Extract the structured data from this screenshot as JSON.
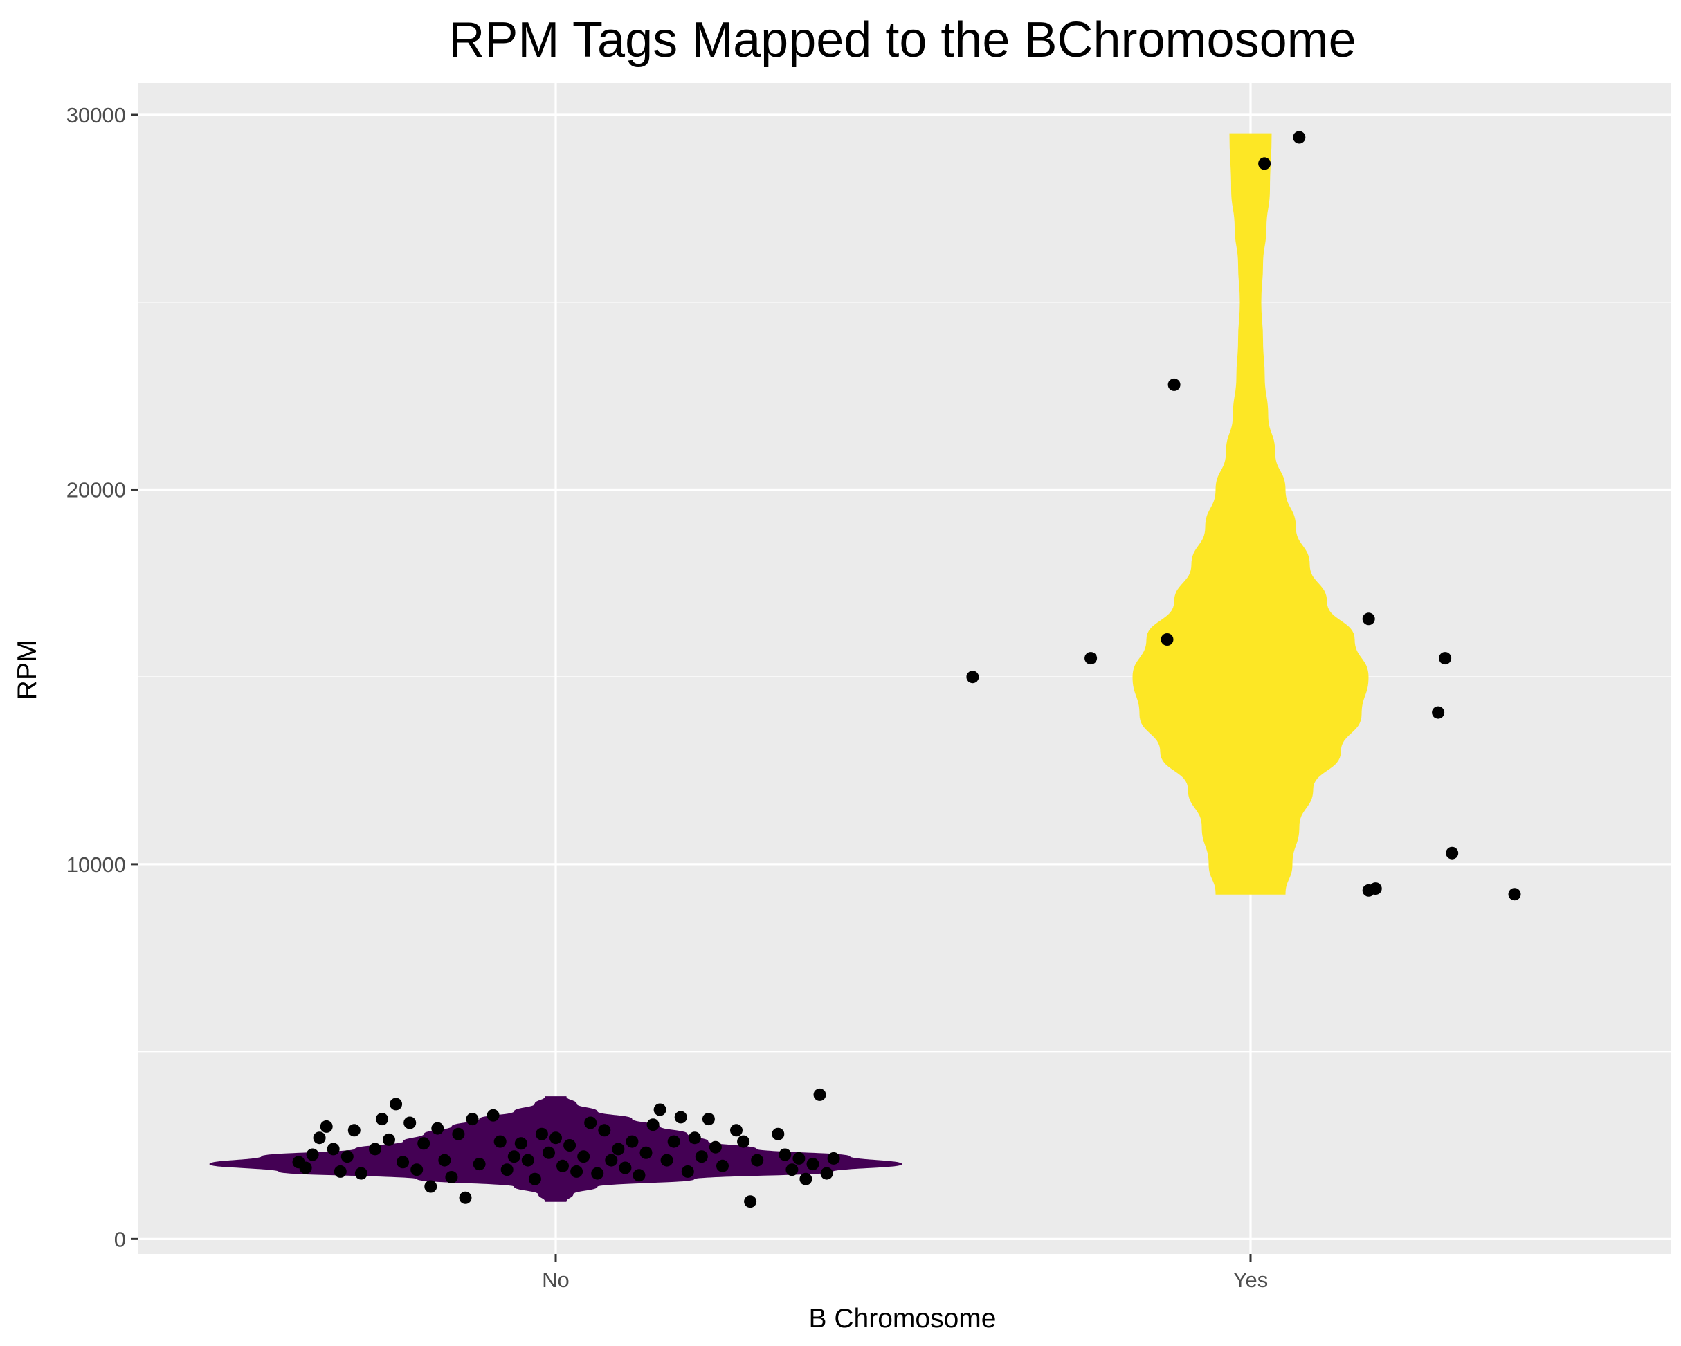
{
  "chart_data": {
    "type": "violin",
    "title": "RPM Tags Mapped to the BChromosome",
    "xlabel": "B Chromosome",
    "ylabel": "RPM",
    "categories": [
      "No",
      "Yes"
    ],
    "yticks": [
      0,
      10000,
      20000,
      30000
    ],
    "ytick_labels": [
      "0",
      "10000",
      "20000",
      "30000"
    ],
    "ylim": [
      -400,
      30850
    ],
    "grid": true,
    "legend": "none",
    "colors": {
      "panel": "#ebebeb",
      "grid": "#ffffff",
      "tick": "#333333",
      "point": "#000000",
      "No": "#440154",
      "Yes": "#fde725"
    },
    "violins": [
      {
        "category": "No",
        "color": "#440154",
        "profile": [
          [
            1000,
            0.03
          ],
          [
            1200,
            0.05
          ],
          [
            1400,
            0.12
          ],
          [
            1600,
            0.4
          ],
          [
            1800,
            0.8
          ],
          [
            2000,
            1.0
          ],
          [
            2200,
            0.85
          ],
          [
            2400,
            0.58
          ],
          [
            2600,
            0.44
          ],
          [
            2800,
            0.38
          ],
          [
            3000,
            0.3
          ],
          [
            3200,
            0.22
          ],
          [
            3400,
            0.12
          ],
          [
            3600,
            0.06
          ],
          [
            3800,
            0.03
          ]
        ]
      },
      {
        "category": "Yes",
        "color": "#fde725",
        "profile": [
          [
            9200,
            0.1
          ],
          [
            10000,
            0.12
          ],
          [
            11000,
            0.14
          ],
          [
            12000,
            0.18
          ],
          [
            13000,
            0.26
          ],
          [
            14000,
            0.32
          ],
          [
            15000,
            0.34
          ],
          [
            16000,
            0.3
          ],
          [
            17000,
            0.22
          ],
          [
            18000,
            0.17
          ],
          [
            19000,
            0.13
          ],
          [
            20000,
            0.1
          ],
          [
            21000,
            0.07
          ],
          [
            22000,
            0.05
          ],
          [
            23000,
            0.04
          ],
          [
            24000,
            0.035
          ],
          [
            25000,
            0.03
          ],
          [
            26000,
            0.035
          ],
          [
            27000,
            0.045
          ],
          [
            28000,
            0.055
          ],
          [
            29500,
            0.06
          ]
        ]
      }
    ],
    "points": [
      {
        "x": 0.63,
        "y": 2050
      },
      {
        "x": 0.64,
        "y": 1900
      },
      {
        "x": 0.65,
        "y": 2250
      },
      {
        "x": 0.66,
        "y": 2700
      },
      {
        "x": 0.67,
        "y": 3000
      },
      {
        "x": 0.68,
        "y": 2400
      },
      {
        "x": 0.69,
        "y": 1800
      },
      {
        "x": 0.7,
        "y": 2200
      },
      {
        "x": 0.71,
        "y": 2900
      },
      {
        "x": 0.72,
        "y": 1750
      },
      {
        "x": 0.74,
        "y": 2400
      },
      {
        "x": 0.75,
        "y": 3200
      },
      {
        "x": 0.76,
        "y": 2650
      },
      {
        "x": 0.77,
        "y": 3600
      },
      {
        "x": 0.78,
        "y": 2050
      },
      {
        "x": 0.79,
        "y": 3100
      },
      {
        "x": 0.8,
        "y": 1850
      },
      {
        "x": 0.81,
        "y": 2550
      },
      {
        "x": 0.82,
        "y": 1400
      },
      {
        "x": 0.83,
        "y": 2950
      },
      {
        "x": 0.84,
        "y": 2100
      },
      {
        "x": 0.85,
        "y": 1650
      },
      {
        "x": 0.86,
        "y": 2800
      },
      {
        "x": 0.87,
        "y": 1100
      },
      {
        "x": 0.88,
        "y": 3200
      },
      {
        "x": 0.89,
        "y": 2000
      },
      {
        "x": 0.91,
        "y": 3300
      },
      {
        "x": 0.92,
        "y": 2600
      },
      {
        "x": 0.93,
        "y": 1850
      },
      {
        "x": 0.94,
        "y": 2200
      },
      {
        "x": 0.95,
        "y": 2550
      },
      {
        "x": 0.96,
        "y": 2100
      },
      {
        "x": 0.97,
        "y": 1600
      },
      {
        "x": 0.98,
        "y": 2800
      },
      {
        "x": 0.99,
        "y": 2300
      },
      {
        "x": 1.0,
        "y": 2700
      },
      {
        "x": 1.01,
        "y": 1950
      },
      {
        "x": 1.02,
        "y": 2500
      },
      {
        "x": 1.03,
        "y": 1800
      },
      {
        "x": 1.04,
        "y": 2200
      },
      {
        "x": 1.05,
        "y": 3100
      },
      {
        "x": 1.06,
        "y": 1750
      },
      {
        "x": 1.07,
        "y": 2900
      },
      {
        "x": 1.08,
        "y": 2100
      },
      {
        "x": 1.09,
        "y": 2400
      },
      {
        "x": 1.1,
        "y": 1900
      },
      {
        "x": 1.11,
        "y": 2600
      },
      {
        "x": 1.12,
        "y": 1700
      },
      {
        "x": 1.13,
        "y": 2300
      },
      {
        "x": 1.14,
        "y": 3050
      },
      {
        "x": 1.15,
        "y": 3450
      },
      {
        "x": 1.16,
        "y": 2100
      },
      {
        "x": 1.17,
        "y": 2600
      },
      {
        "x": 1.18,
        "y": 3250
      },
      {
        "x": 1.19,
        "y": 1800
      },
      {
        "x": 1.2,
        "y": 2700
      },
      {
        "x": 1.21,
        "y": 2200
      },
      {
        "x": 1.22,
        "y": 3200
      },
      {
        "x": 1.23,
        "y": 2450
      },
      {
        "x": 1.24,
        "y": 1950
      },
      {
        "x": 1.26,
        "y": 2900
      },
      {
        "x": 1.27,
        "y": 2600
      },
      {
        "x": 1.28,
        "y": 1000
      },
      {
        "x": 1.29,
        "y": 2100
      },
      {
        "x": 1.32,
        "y": 2800
      },
      {
        "x": 1.33,
        "y": 2250
      },
      {
        "x": 1.34,
        "y": 1850
      },
      {
        "x": 1.35,
        "y": 2150
      },
      {
        "x": 1.36,
        "y": 1600
      },
      {
        "x": 1.37,
        "y": 2000
      },
      {
        "x": 1.38,
        "y": 3850
      },
      {
        "x": 1.39,
        "y": 1750
      },
      {
        "x": 1.4,
        "y": 2150
      },
      {
        "x": 1.6,
        "y": 15000
      },
      {
        "x": 1.77,
        "y": 15500
      },
      {
        "x": 1.88,
        "y": 16000
      },
      {
        "x": 1.89,
        "y": 22800
      },
      {
        "x": 2.02,
        "y": 28700
      },
      {
        "x": 2.07,
        "y": 29400
      },
      {
        "x": 2.17,
        "y": 16550
      },
      {
        "x": 2.17,
        "y": 9300
      },
      {
        "x": 2.18,
        "y": 9350
      },
      {
        "x": 2.27,
        "y": 14050
      },
      {
        "x": 2.28,
        "y": 15500
      },
      {
        "x": 2.29,
        "y": 10300
      },
      {
        "x": 2.38,
        "y": 9200
      }
    ]
  }
}
